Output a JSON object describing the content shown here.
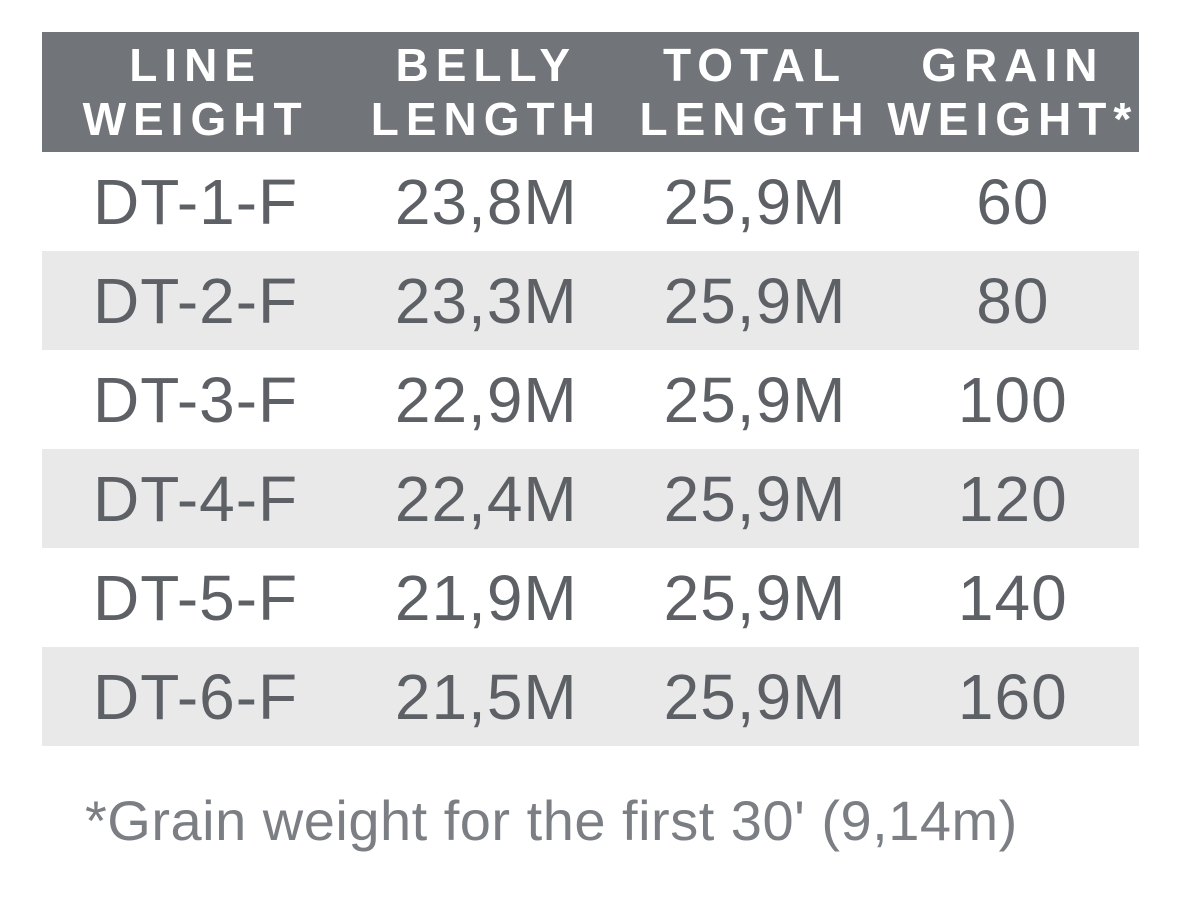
{
  "chart_data": {
    "type": "table",
    "title": "",
    "columns": [
      "LINE WEIGHT",
      "BELLY LENGTH",
      "TOTAL LENGTH",
      "GRAIN WEIGHT*"
    ],
    "rows": [
      [
        "DT-1-F",
        "23,8M",
        "25,9M",
        "60"
      ],
      [
        "DT-2-F",
        "23,3M",
        "25,9M",
        "80"
      ],
      [
        "DT-3-F",
        "22,9M",
        "25,9M",
        "100"
      ],
      [
        "DT-4-F",
        "22,4M",
        "25,9M",
        "120"
      ],
      [
        "DT-5-F",
        "21,9M",
        "25,9M",
        "140"
      ],
      [
        "DT-6-F",
        "21,5M",
        "25,9M",
        "160"
      ]
    ],
    "footnote": "*Grain weight for the first 30' (9,14m)",
    "layout": "header dark bar, zebra stripes on even rows, footnote below"
  },
  "header_display": {
    "col0": {
      "line1": "LINE",
      "line2": "WEIGHT"
    },
    "col1": {
      "line1": "BELLY",
      "line2": "LENGTH"
    },
    "col2": {
      "line1": "TOTAL",
      "line2": "LENGTH"
    },
    "col3": {
      "line1": "GRAIN",
      "line2": "WEIGHT*"
    }
  },
  "colors": {
    "header_bg": "#717478",
    "header_text": "#ffffff",
    "stripe_bg": "#e9e9ea",
    "plain_bg": "#ffffff",
    "data_text": "#5d6166",
    "footnote_text": "#7b7f84"
  }
}
